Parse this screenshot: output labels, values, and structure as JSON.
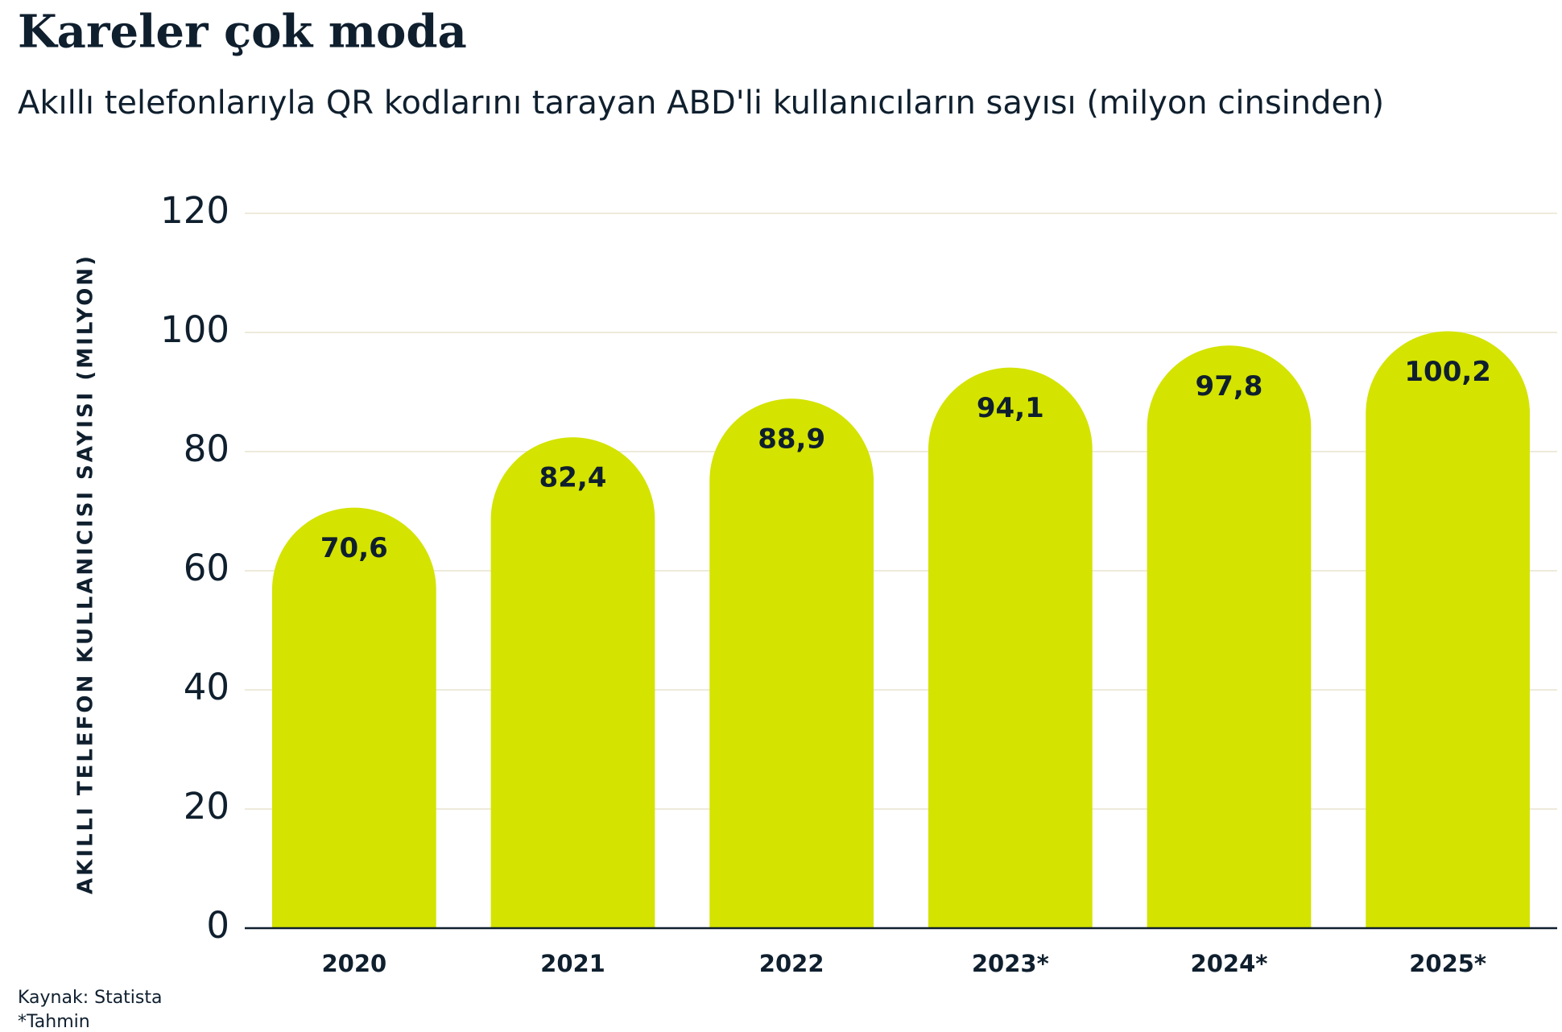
{
  "chart_data": {
    "type": "bar",
    "title": "Kareler çok moda",
    "subtitle": "Akıllı telefonlarıyla QR kodlarını tarayan ABD'li kullanıcıların sayısı (milyon cinsinden)",
    "y_label": "AKILLI TELEFON KULLANICISI SAYISI (MILYON)",
    "categories": [
      "2020",
      "2021",
      "2022",
      "2023*",
      "2024*",
      "2025*"
    ],
    "values": [
      70.6,
      82.4,
      88.9,
      94.1,
      97.8,
      100.2
    ],
    "value_labels": [
      "70,6",
      "82,4",
      "88,9",
      "94,1",
      "97,8",
      "100,2"
    ],
    "color": "#d4e300",
    "ylim": [
      0,
      120
    ],
    "yticks": [
      0,
      20,
      40,
      60,
      80,
      100,
      120
    ],
    "grid": true,
    "source": "Kaynak: Statista",
    "note": "*Tahmin"
  }
}
